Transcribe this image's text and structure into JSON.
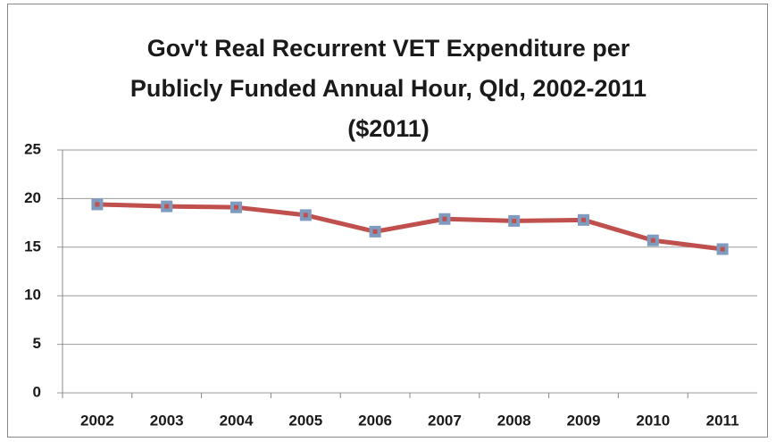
{
  "chart_data": {
    "type": "line",
    "title": "Gov't Real Recurrent VET Expenditure per Publicly Funded Annual Hour, Qld, 2002-2011 ($2011)",
    "categories": [
      "2002",
      "2003",
      "2004",
      "2005",
      "2006",
      "2007",
      "2008",
      "2009",
      "2010",
      "2011"
    ],
    "values": [
      19.4,
      19.2,
      19.1,
      18.3,
      16.6,
      17.9,
      17.7,
      17.8,
      15.7,
      14.8
    ],
    "color": "#c0504d",
    "marker_color": "#7f9cc0",
    "ylim": [
      0,
      25
    ],
    "yticks": [
      0,
      5,
      10,
      15,
      20,
      25
    ],
    "grid": true
  }
}
